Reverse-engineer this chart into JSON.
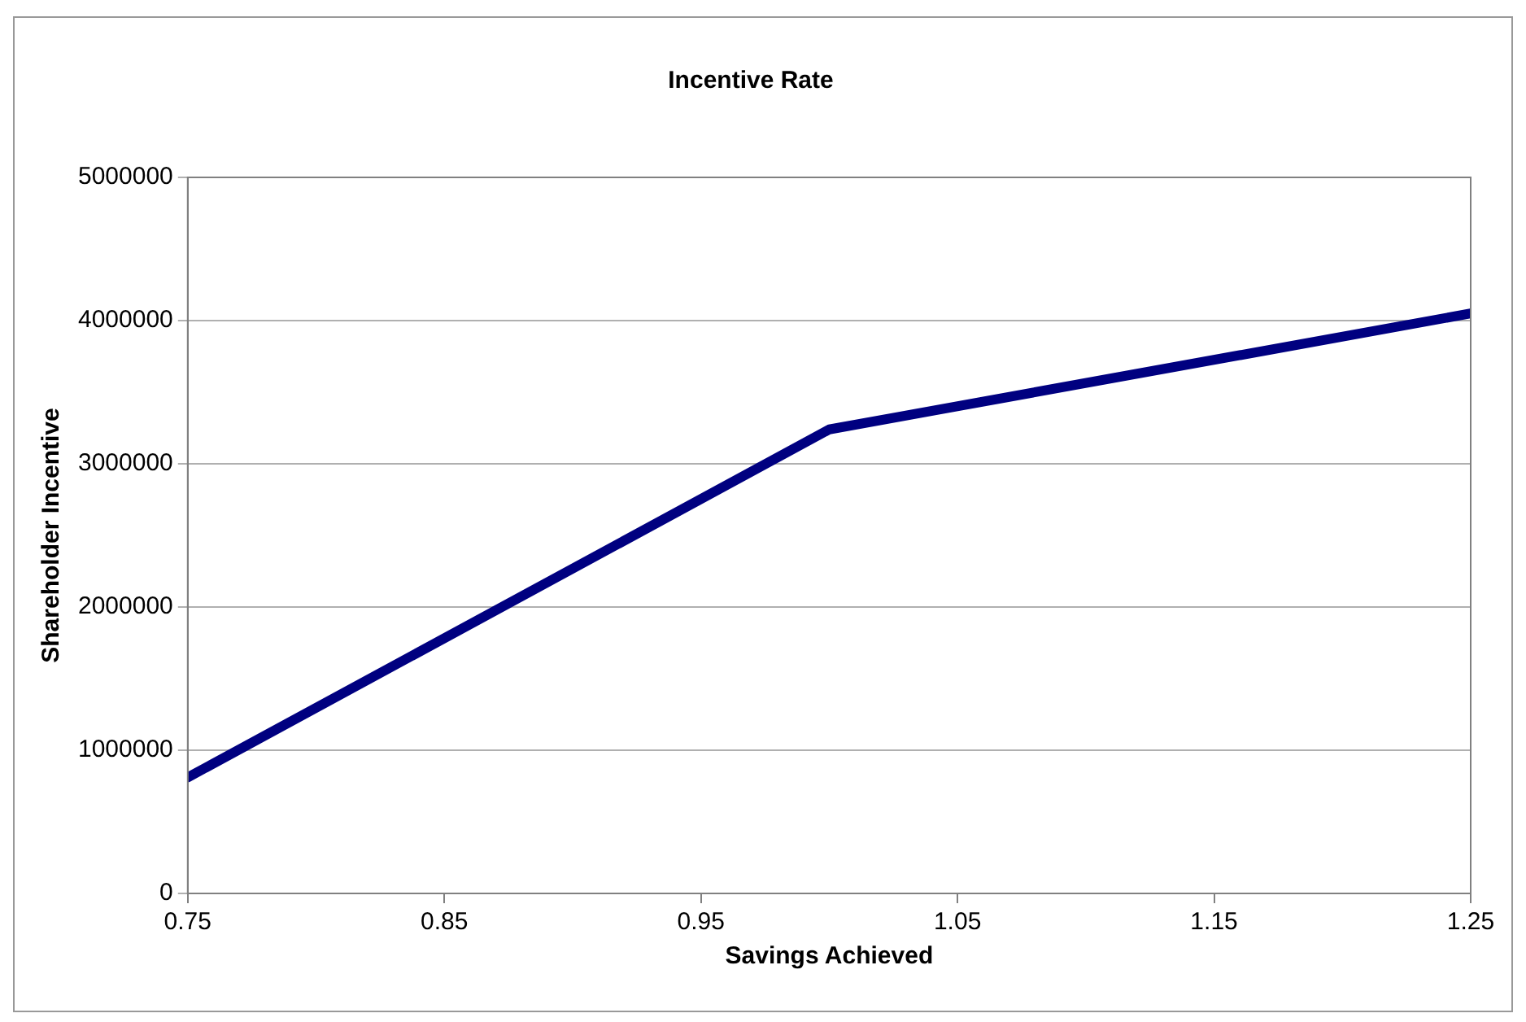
{
  "chart_data": {
    "type": "line",
    "title": "Incentive Rate",
    "xlabel": "Savings Achieved",
    "ylabel": "Shareholder Incentive",
    "x": [
      0.75,
      1.0,
      1.25
    ],
    "series": [
      {
        "color": "#000080",
        "values": [
          810000,
          3240000,
          4050000
        ]
      }
    ],
    "xlim": [
      0.75,
      1.25
    ],
    "xticks": [
      0.75,
      0.85,
      0.95,
      1.05,
      1.15,
      1.25
    ],
    "ylim": [
      0,
      5000000
    ],
    "yticks": [
      0,
      1000000,
      2000000,
      3000000,
      4000000,
      5000000
    ],
    "grid": "y",
    "legend": false,
    "marker": "none",
    "line_style": "solid"
  }
}
